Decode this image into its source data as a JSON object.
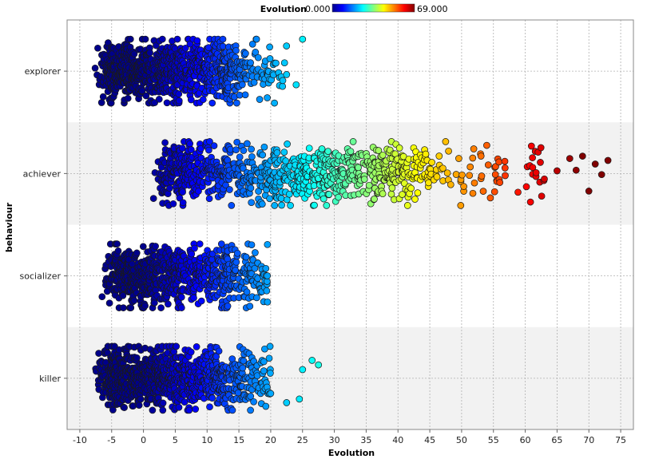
{
  "chart_data": {
    "type": "scatter",
    "title": "",
    "xlabel": "Evolution",
    "ylabel": "behaviour",
    "xlim": [
      -12,
      77
    ],
    "xticks": [
      -10,
      -5,
      0,
      5,
      10,
      15,
      20,
      25,
      30,
      35,
      40,
      45,
      50,
      55,
      60,
      65,
      70,
      75
    ],
    "categories": [
      "explorer",
      "achiever",
      "socializer",
      "killer"
    ],
    "grid": true,
    "color_legend": {
      "title": "Evolution",
      "min_label": "0.000",
      "max_label": "69.000",
      "min": 0,
      "max": 69,
      "colormap": "jet",
      "placement": "top-center"
    },
    "series": [
      {
        "category": "explorer",
        "points_estimated": 2500,
        "x_range": [
          -8,
          25
        ],
        "x_core": [
          -6,
          15
        ],
        "x_outliers": [
          22.5,
          24,
          25
        ]
      },
      {
        "category": "achiever",
        "points_estimated": 2500,
        "x_range": [
          1,
          73
        ],
        "x_core": [
          3,
          45
        ],
        "x_outliers": [
          63,
          65,
          67,
          68,
          69,
          70,
          71,
          72,
          73
        ]
      },
      {
        "category": "socializer",
        "points_estimated": 2000,
        "x_range": [
          -6.5,
          19.5
        ],
        "x_core": [
          -5,
          16
        ],
        "x_outliers": [
          19.5
        ]
      },
      {
        "category": "killer",
        "points_estimated": 2500,
        "x_range": [
          -7.5,
          27.5
        ],
        "x_core": [
          -6,
          15
        ],
        "x_outliers": [
          20,
          22.5,
          24.5,
          25,
          26.5,
          27.5
        ]
      }
    ],
    "band_colors": [
      "#ffffff",
      "#f2f2f2",
      "#ffffff",
      "#f2f2f2"
    ],
    "jet_stops": [
      "#00008b",
      "#0000ff",
      "#0080ff",
      "#00ffff",
      "#80ff80",
      "#ffff00",
      "#ff8000",
      "#ff0000",
      "#800000"
    ]
  }
}
